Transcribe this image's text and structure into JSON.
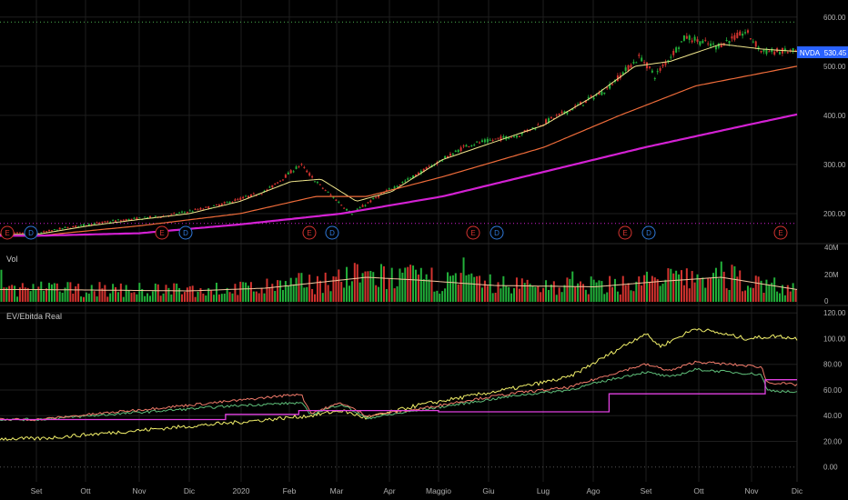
{
  "symbol": "NVDA",
  "last_price": "530.45",
  "colors": {
    "background": "#000000",
    "grid": "#1e1e1e",
    "up": "#26a69a",
    "up_bright": "#22b03a",
    "down": "#d3332f",
    "ma_fast": "#f0e68c",
    "ma_mid": "#ef6c3a",
    "ma_slow": "#d321d3",
    "price_tag": "#2962ff",
    "event_E": "#d3332f",
    "event_D": "#2f78d8",
    "hline": "#4caf50",
    "ev_yellow": "#f2f06a",
    "ev_red": "#f07a6a",
    "ev_green": "#5fbf7a",
    "ev_magenta": "#e040e0",
    "axis_text": "#b0b0b0",
    "zero_line": "#3a3a3a"
  },
  "x_axis": {
    "labels": [
      "Set",
      "Ott",
      "Nov",
      "Dic",
      "2020",
      "Feb",
      "Mar",
      "Apr",
      "Maggio",
      "Giu",
      "Lug",
      "Ago",
      "Set",
      "Ott",
      "Nov",
      "Dic"
    ]
  },
  "price_axis": {
    "ticks": [
      "600.00",
      "500.00",
      "400.00",
      "300.00",
      "200.00"
    ]
  },
  "volume_pane": {
    "label": "Vol",
    "ticks": [
      "40M",
      "20M",
      "0"
    ]
  },
  "ev_pane": {
    "label": "EV/Ebitda Real",
    "ticks": [
      "120.00",
      "100.00",
      "80.00",
      "60.00",
      "40.00",
      "20.00",
      "0.00"
    ]
  },
  "events": [
    {
      "type": "E"
    },
    {
      "type": "D"
    },
    {
      "type": "E"
    },
    {
      "type": "D"
    },
    {
      "type": "E"
    },
    {
      "type": "D"
    },
    {
      "type": "E"
    },
    {
      "type": "D"
    },
    {
      "type": "E"
    },
    {
      "type": "D"
    },
    {
      "type": "E"
    }
  ],
  "chart_data": {
    "type": "line",
    "series": [],
    "price_knots": [
      [
        0,
        160
      ],
      [
        0.5,
        170
      ],
      [
        1.5,
        185
      ],
      [
        2.5,
        195
      ],
      [
        3.5,
        215
      ],
      [
        4.5,
        245
      ],
      [
        5.2,
        300
      ],
      [
        5.5,
        265
      ],
      [
        6.2,
        200
      ],
      [
        6.8,
        240
      ],
      [
        7.5,
        280
      ],
      [
        8.5,
        340
      ],
      [
        9.5,
        360
      ],
      [
        10.5,
        410
      ],
      [
        11.2,
        450
      ],
      [
        11.9,
        520
      ],
      [
        12.2,
        480
      ],
      [
        12.8,
        560
      ],
      [
        13.4,
        540
      ],
      [
        14,
        570
      ],
      [
        14.3,
        530
      ],
      [
        15,
        530
      ]
    ],
    "ma20_knots": [
      [
        0,
        158
      ],
      [
        1,
        175
      ],
      [
        2,
        188
      ],
      [
        3,
        200
      ],
      [
        4,
        225
      ],
      [
        5,
        265
      ],
      [
        5.6,
        270
      ],
      [
        6.3,
        225
      ],
      [
        7,
        245
      ],
      [
        8,
        310
      ],
      [
        9,
        345
      ],
      [
        10,
        380
      ],
      [
        11,
        440
      ],
      [
        11.8,
        500
      ],
      [
        12.5,
        510
      ],
      [
        13.5,
        545
      ],
      [
        14.3,
        535
      ],
      [
        15,
        530
      ]
    ],
    "ma50_knots": [
      [
        0,
        155
      ],
      [
        2,
        175
      ],
      [
        4,
        200
      ],
      [
        5.5,
        235
      ],
      [
        6.5,
        235
      ],
      [
        8,
        275
      ],
      [
        10,
        335
      ],
      [
        11.5,
        400
      ],
      [
        13,
        460
      ],
      [
        15,
        500
      ]
    ],
    "ma200_knots": [
      [
        0,
        155
      ],
      [
        2,
        160
      ],
      [
        4,
        178
      ],
      [
        6,
        200
      ],
      [
        8,
        235
      ],
      [
        10,
        285
      ],
      [
        12,
        335
      ],
      [
        14,
        380
      ],
      [
        15,
        402
      ]
    ],
    "volume_knots": [
      [
        0,
        9
      ],
      [
        3,
        8
      ],
      [
        4.5,
        10
      ],
      [
        5.5,
        14
      ],
      [
        6.5,
        18
      ],
      [
        7.5,
        16
      ],
      [
        9,
        12
      ],
      [
        11,
        11
      ],
      [
        12.3,
        15
      ],
      [
        13.5,
        18
      ],
      [
        15,
        9
      ]
    ],
    "ev_yellow_knots": [
      [
        0,
        22
      ],
      [
        4,
        35
      ],
      [
        5.4,
        40
      ],
      [
        6,
        44
      ],
      [
        6.5,
        38
      ],
      [
        7.5,
        48
      ],
      [
        8.5,
        55
      ],
      [
        9.5,
        62
      ],
      [
        10.5,
        70
      ],
      [
        11.3,
        88
      ],
      [
        12,
        104
      ],
      [
        12.3,
        94
      ],
      [
        13,
        108
      ],
      [
        14,
        100
      ],
      [
        14.6,
        102
      ],
      [
        15,
        100
      ]
    ],
    "ev_red_knots": [
      [
        0,
        37
      ],
      [
        4,
        52
      ],
      [
        5.2,
        57
      ],
      [
        5.4,
        42
      ],
      [
        6,
        50
      ],
      [
        6.5,
        40
      ],
      [
        7.5,
        45
      ],
      [
        8.5,
        52
      ],
      [
        9.5,
        58
      ],
      [
        10.5,
        62
      ],
      [
        11.3,
        72
      ],
      [
        12,
        80
      ],
      [
        12.5,
        75
      ],
      [
        13,
        82
      ],
      [
        14.3,
        78
      ],
      [
        14.4,
        66
      ],
      [
        15,
        64
      ]
    ],
    "ev_green_knots": [
      [
        0,
        37
      ],
      [
        4,
        48
      ],
      [
        5.2,
        50
      ],
      [
        5.4,
        41
      ],
      [
        6,
        49
      ],
      [
        6.5,
        38
      ],
      [
        7.5,
        44
      ],
      [
        8.5,
        50
      ],
      [
        9.5,
        56
      ],
      [
        10.5,
        60
      ],
      [
        11.3,
        68
      ],
      [
        12,
        74
      ],
      [
        12.5,
        70
      ],
      [
        13,
        76
      ],
      [
        14.3,
        72
      ],
      [
        14.4,
        60
      ],
      [
        15,
        58
      ]
    ],
    "ev_step": [
      [
        0,
        37
      ],
      [
        3.7,
        37
      ],
      [
        3.7,
        41
      ],
      [
        5.2,
        41
      ],
      [
        5.2,
        44
      ],
      [
        8,
        44
      ],
      [
        8,
        43
      ],
      [
        11.3,
        43
      ],
      [
        11.3,
        57
      ],
      [
        14.3,
        57
      ],
      [
        14.3,
        68
      ],
      [
        15,
        68
      ]
    ],
    "price_range": [
      150,
      620
    ],
    "volume_range": [
      0,
      40
    ],
    "ev_range": [
      -8,
      123
    ],
    "green_hline_value": 590,
    "magenta_hline_value": 180
  }
}
